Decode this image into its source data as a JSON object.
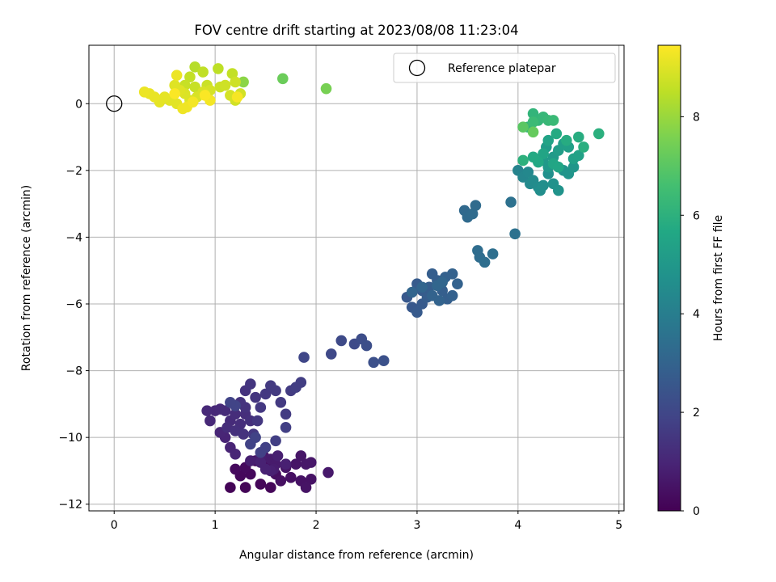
{
  "chart_data": {
    "type": "scatter",
    "title": "FOV centre drift starting at 2023/08/08 11:23:04",
    "xlabel": "Angular distance from reference (arcmin)",
    "ylabel": "Rotation from reference (arcmin)",
    "xlim": [
      -0.25,
      5.05
    ],
    "ylim": [
      -12.2,
      1.75
    ],
    "xticks": [
      "0",
      "1",
      "2",
      "3",
      "4",
      "5"
    ],
    "yticks": [
      "0",
      "−2",
      "−4",
      "−6",
      "−8",
      "−10",
      "−12"
    ],
    "grid": true,
    "legend": {
      "position": "top-right",
      "entries": [
        "Reference platepar"
      ]
    },
    "reference_point": {
      "x": 0,
      "y": 0
    },
    "colorbar": {
      "label": "Hours from first FF file",
      "range": [
        0,
        9.45
      ],
      "ticks": [
        "0",
        "2",
        "4",
        "6",
        "8"
      ],
      "colormap": "viridis"
    },
    "points": [
      [
        1.15,
        -11.5,
        0.1
      ],
      [
        1.3,
        -11.5,
        0.1
      ],
      [
        1.45,
        -11.4,
        0.15
      ],
      [
        1.55,
        -11.5,
        0.15
      ],
      [
        1.35,
        -11.1,
        0.2
      ],
      [
        1.25,
        -11.15,
        0.2
      ],
      [
        1.2,
        -10.95,
        0.25
      ],
      [
        1.3,
        -10.9,
        0.25
      ],
      [
        1.4,
        -10.7,
        0.3
      ],
      [
        1.5,
        -10.7,
        0.3
      ],
      [
        1.55,
        -10.9,
        0.35
      ],
      [
        1.6,
        -11.1,
        0.35
      ],
      [
        1.65,
        -11.3,
        0.4
      ],
      [
        1.75,
        -11.2,
        0.4
      ],
      [
        1.85,
        -11.3,
        0.45
      ],
      [
        1.95,
        -11.25,
        0.45
      ],
      [
        1.9,
        -11.5,
        0.5
      ],
      [
        1.7,
        -10.9,
        0.5
      ],
      [
        1.8,
        -10.8,
        0.55
      ],
      [
        1.85,
        -10.55,
        0.55
      ],
      [
        1.9,
        -10.8,
        0.6
      ],
      [
        1.95,
        -10.75,
        0.6
      ],
      [
        2.12,
        -11.05,
        0.65
      ],
      [
        1.48,
        -10.55,
        0.65
      ],
      [
        1.55,
        -10.65,
        0.7
      ],
      [
        1.6,
        -10.8,
        0.7
      ],
      [
        1.45,
        -10.6,
        0.75
      ],
      [
        1.58,
        -10.95,
        0.75
      ],
      [
        1.35,
        -10.7,
        0.8
      ],
      [
        1.62,
        -10.55,
        0.8
      ],
      [
        1.7,
        -10.8,
        0.85
      ],
      [
        1.55,
        -11.0,
        0.85
      ],
      [
        1.5,
        -10.95,
        0.9
      ],
      [
        1.45,
        -10.75,
        0.9
      ],
      [
        1.15,
        -10.3,
        0.95
      ],
      [
        1.1,
        -10.0,
        0.95
      ],
      [
        1.2,
        -10.5,
        1.0
      ],
      [
        1.05,
        -9.85,
        1.0
      ],
      [
        1.0,
        -9.2,
        1.05
      ],
      [
        0.95,
        -9.5,
        1.05
      ],
      [
        0.92,
        -9.2,
        1.1
      ],
      [
        1.05,
        -9.15,
        1.1
      ],
      [
        1.1,
        -9.2,
        1.15
      ],
      [
        1.15,
        -9.5,
        1.15
      ],
      [
        1.2,
        -9.3,
        1.2
      ],
      [
        1.12,
        -9.7,
        1.2
      ],
      [
        1.25,
        -9.6,
        1.25
      ],
      [
        1.3,
        -9.3,
        1.25
      ],
      [
        1.35,
        -9.5,
        1.3
      ],
      [
        1.2,
        -9.8,
        1.3
      ],
      [
        1.28,
        -9.9,
        1.35
      ],
      [
        1.3,
        -9.1,
        1.35
      ],
      [
        1.25,
        -8.95,
        1.4
      ],
      [
        1.3,
        -8.6,
        1.4
      ],
      [
        1.35,
        -8.4,
        1.45
      ],
      [
        1.4,
        -8.8,
        1.45
      ],
      [
        1.42,
        -9.5,
        1.5
      ],
      [
        1.38,
        -9.9,
        1.5
      ],
      [
        1.45,
        -9.1,
        1.55
      ],
      [
        1.5,
        -8.7,
        1.55
      ],
      [
        1.55,
        -8.45,
        1.6
      ],
      [
        1.6,
        -8.6,
        1.6
      ],
      [
        1.65,
        -8.95,
        1.6
      ],
      [
        1.7,
        -9.3,
        1.65
      ],
      [
        1.75,
        -8.6,
        1.65
      ],
      [
        1.8,
        -8.5,
        1.7
      ],
      [
        1.85,
        -8.35,
        1.7
      ],
      [
        1.6,
        -10.1,
        1.75
      ],
      [
        1.7,
        -9.7,
        1.75
      ],
      [
        1.5,
        -10.3,
        1.8
      ],
      [
        1.45,
        -10.45,
        1.8
      ],
      [
        1.35,
        -10.2,
        1.85
      ],
      [
        1.4,
        -10.0,
        1.85
      ],
      [
        1.2,
        -9.05,
        1.9
      ],
      [
        1.15,
        -8.95,
        1.9
      ],
      [
        1.88,
        -7.6,
        2.0
      ],
      [
        2.15,
        -7.5,
        2.05
      ],
      [
        2.25,
        -7.1,
        2.1
      ],
      [
        2.38,
        -7.2,
        2.15
      ],
      [
        2.45,
        -7.05,
        2.2
      ],
      [
        2.5,
        -7.25,
        2.25
      ],
      [
        2.57,
        -7.75,
        2.3
      ],
      [
        2.67,
        -7.7,
        2.35
      ],
      [
        2.9,
        -5.8,
        2.6
      ],
      [
        2.95,
        -6.1,
        2.6
      ],
      [
        3.0,
        -6.25,
        2.65
      ],
      [
        3.05,
        -6.0,
        2.65
      ],
      [
        3.0,
        -5.4,
        2.7
      ],
      [
        3.05,
        -5.6,
        2.7
      ],
      [
        3.1,
        -5.8,
        2.75
      ],
      [
        3.12,
        -5.5,
        2.75
      ],
      [
        3.15,
        -5.1,
        2.8
      ],
      [
        3.2,
        -5.3,
        2.8
      ],
      [
        3.25,
        -5.6,
        2.85
      ],
      [
        3.3,
        -5.85,
        2.85
      ],
      [
        3.35,
        -5.75,
        2.9
      ],
      [
        3.28,
        -5.2,
        2.9
      ],
      [
        3.35,
        -5.1,
        2.95
      ],
      [
        3.4,
        -5.4,
        2.95
      ],
      [
        3.15,
        -5.75,
        3.0
      ],
      [
        3.22,
        -5.9,
        3.0
      ],
      [
        2.95,
        -5.65,
        3.05
      ],
      [
        3.05,
        -5.5,
        3.05
      ],
      [
        3.2,
        -5.45,
        3.1
      ],
      [
        3.25,
        -5.35,
        3.1
      ],
      [
        3.47,
        -3.2,
        3.2
      ],
      [
        3.5,
        -3.4,
        3.25
      ],
      [
        3.55,
        -3.3,
        3.3
      ],
      [
        3.58,
        -3.05,
        3.3
      ],
      [
        3.6,
        -4.4,
        3.35
      ],
      [
        3.62,
        -4.6,
        3.35
      ],
      [
        3.67,
        -4.75,
        3.4
      ],
      [
        3.75,
        -4.5,
        3.45
      ],
      [
        3.93,
        -2.95,
        3.5
      ],
      [
        3.97,
        -3.9,
        3.5
      ],
      [
        4.0,
        -2.0,
        4.2
      ],
      [
        4.05,
        -2.2,
        4.3
      ],
      [
        4.1,
        -2.05,
        4.4
      ],
      [
        4.12,
        -2.4,
        4.45
      ],
      [
        4.15,
        -2.3,
        4.5
      ],
      [
        4.2,
        -2.5,
        4.55
      ],
      [
        4.22,
        -2.6,
        4.6
      ],
      [
        4.25,
        -2.45,
        4.65
      ],
      [
        4.3,
        -2.1,
        4.7
      ],
      [
        4.35,
        -2.4,
        4.75
      ],
      [
        4.4,
        -2.6,
        4.8
      ],
      [
        4.45,
        -2.0,
        4.85
      ],
      [
        4.5,
        -2.1,
        4.9
      ],
      [
        4.55,
        -1.9,
        4.95
      ],
      [
        4.3,
        -1.9,
        5.0
      ],
      [
        4.25,
        -1.7,
        5.05
      ],
      [
        4.35,
        -1.6,
        5.1
      ],
      [
        4.28,
        -1.3,
        5.15
      ],
      [
        4.4,
        -1.4,
        5.2
      ],
      [
        4.45,
        -1.2,
        5.25
      ],
      [
        4.5,
        -1.3,
        5.3
      ],
      [
        4.55,
        -1.65,
        5.35
      ],
      [
        4.6,
        -1.55,
        5.4
      ],
      [
        4.3,
        -1.1,
        5.45
      ],
      [
        4.25,
        -1.5,
        5.5
      ],
      [
        4.35,
        -1.8,
        5.55
      ],
      [
        4.4,
        -1.9,
        5.6
      ],
      [
        4.2,
        -1.75,
        5.65
      ],
      [
        4.15,
        -1.6,
        5.7
      ],
      [
        4.38,
        -0.9,
        5.75
      ],
      [
        4.48,
        -1.1,
        5.8
      ],
      [
        4.6,
        -1.0,
        5.85
      ],
      [
        4.65,
        -1.3,
        5.9
      ],
      [
        4.8,
        -0.9,
        5.95
      ],
      [
        4.05,
        -1.7,
        6.0
      ],
      [
        4.1,
        -0.7,
        6.1
      ],
      [
        4.15,
        -0.3,
        6.15
      ],
      [
        4.2,
        -0.5,
        6.2
      ],
      [
        4.25,
        -0.4,
        6.25
      ],
      [
        4.3,
        -0.5,
        6.3
      ],
      [
        4.35,
        -0.5,
        6.35
      ],
      [
        4.15,
        -0.55,
        6.4
      ],
      [
        4.05,
        -0.7,
        7.0
      ],
      [
        4.15,
        -0.85,
        7.2
      ],
      [
        1.67,
        0.75,
        7.3
      ],
      [
        2.1,
        0.45,
        7.5
      ],
      [
        1.28,
        0.65,
        7.8
      ],
      [
        0.8,
        1.1,
        8.4
      ],
      [
        1.03,
        1.05,
        8.5
      ],
      [
        0.88,
        0.95,
        8.55
      ],
      [
        1.17,
        0.9,
        8.6
      ],
      [
        0.75,
        0.8,
        8.6
      ],
      [
        0.7,
        0.55,
        8.65
      ],
      [
        0.8,
        0.5,
        8.65
      ],
      [
        0.92,
        0.55,
        8.7
      ],
      [
        1.05,
        0.5,
        8.7
      ],
      [
        1.1,
        0.55,
        8.75
      ],
      [
        1.2,
        0.65,
        8.75
      ],
      [
        1.25,
        0.3,
        8.8
      ],
      [
        1.2,
        0.1,
        8.8
      ],
      [
        1.15,
        0.25,
        8.85
      ],
      [
        0.95,
        0.4,
        8.85
      ],
      [
        0.88,
        0.35,
        8.9
      ],
      [
        0.82,
        0.2,
        8.9
      ],
      [
        0.75,
        0.1,
        8.95
      ],
      [
        0.7,
        0.3,
        8.95
      ],
      [
        0.65,
        0.4,
        9.0
      ],
      [
        0.6,
        0.55,
        9.0
      ],
      [
        0.62,
        0.0,
        9.05
      ],
      [
        0.55,
        0.1,
        9.05
      ],
      [
        0.5,
        0.2,
        9.1
      ],
      [
        0.45,
        0.05,
        9.1
      ],
      [
        0.4,
        0.2,
        9.15
      ],
      [
        0.35,
        0.3,
        9.15
      ],
      [
        0.3,
        0.35,
        9.2
      ],
      [
        0.62,
        0.85,
        9.2
      ],
      [
        0.68,
        -0.15,
        9.25
      ],
      [
        0.72,
        -0.1,
        9.25
      ],
      [
        0.78,
        0.05,
        9.3
      ],
      [
        0.95,
        0.1,
        9.3
      ],
      [
        1.22,
        0.2,
        9.35
      ],
      [
        0.6,
        0.3,
        9.4
      ],
      [
        0.9,
        0.25,
        9.4
      ]
    ]
  }
}
